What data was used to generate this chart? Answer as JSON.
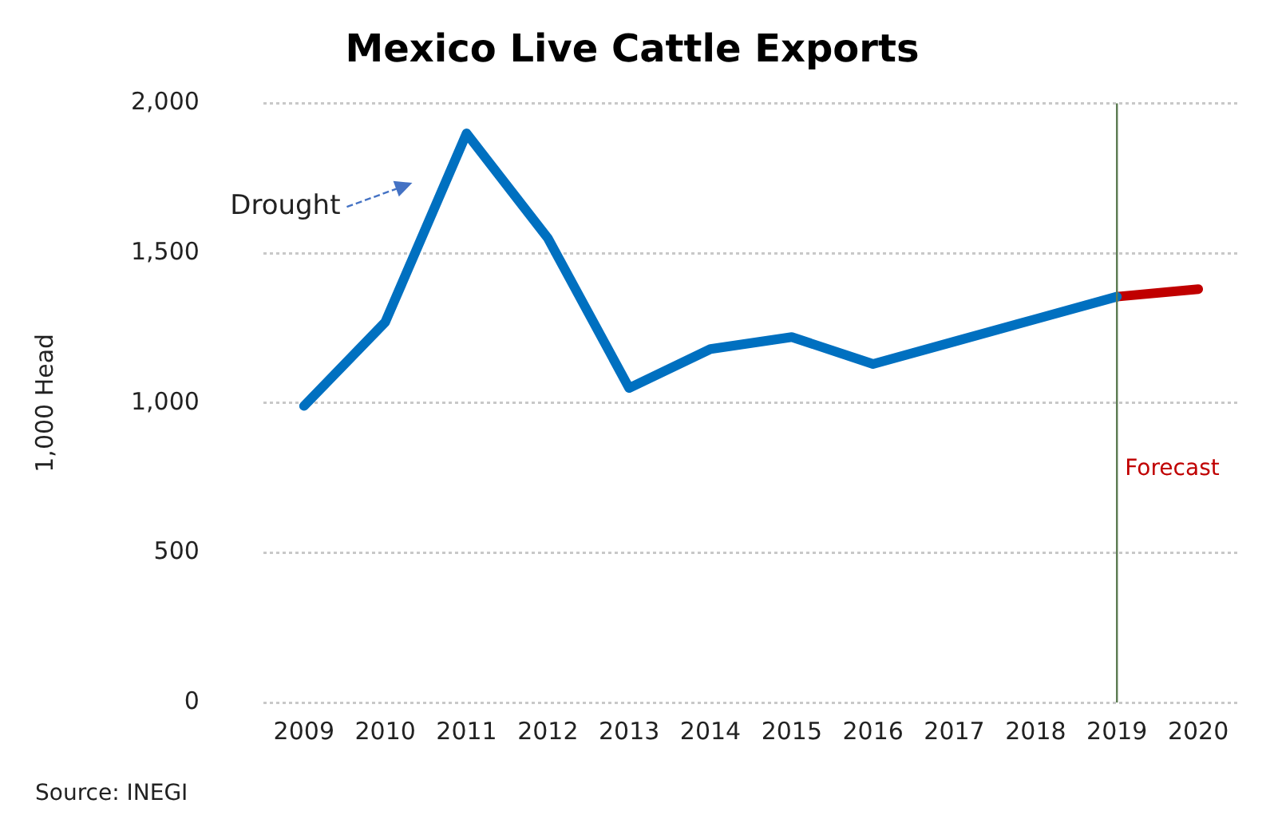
{
  "chart_data": {
    "type": "line",
    "title": "Mexico Live Cattle Exports",
    "ylabel": "1,000 Head",
    "categories": [
      "2009",
      "2010",
      "2011",
      "2012",
      "2013",
      "2014",
      "2015",
      "2016",
      "2017",
      "2018",
      "2019",
      "2020"
    ],
    "series": [
      {
        "color": "#0070c0",
        "values": [
          990,
          1270,
          1900,
          1550,
          1050,
          1180,
          1220,
          1130,
          1205,
          1280,
          1355,
          null
        ]
      },
      {
        "color": "#c00000",
        "values": [
          null,
          null,
          null,
          null,
          null,
          null,
          null,
          null,
          null,
          null,
          1355,
          1380
        ]
      }
    ],
    "ylim": [
      0,
      2000
    ],
    "yticks": [
      {
        "value": 0,
        "label": "0"
      },
      {
        "value": 500,
        "label": "500"
      },
      {
        "value": 1000,
        "label": "1,000"
      },
      {
        "value": 1500,
        "label": "1,500"
      },
      {
        "value": 2000,
        "label": "2,000"
      }
    ],
    "grid": "y",
    "legend": false,
    "marker": "none",
    "line_style": "solid",
    "ref_lines": [
      {
        "axis": "x",
        "value": "2019",
        "label": "Forecast",
        "color": "#5a7a50"
      }
    ],
    "annotations": [
      "Drought",
      "Source: INEGI"
    ]
  }
}
